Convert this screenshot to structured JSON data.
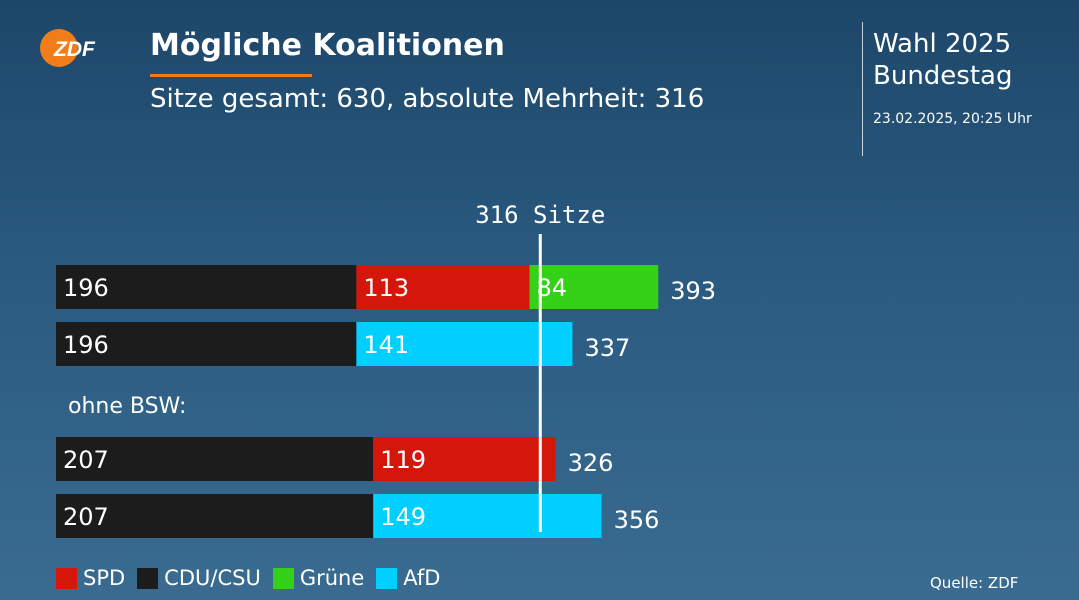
{
  "header": {
    "logo_text": "ZDF",
    "title": "Mögliche Koalitionen",
    "subtitle": "Sitze gesamt: 630, absolute Mehrheit: 316",
    "election_line1": "Wahl 2025",
    "election_line2": "Bundestag",
    "timestamp": "23.02.2025, 20:25 Uhr"
  },
  "source": "Quelle: ZDF",
  "parties": [
    {
      "key": "SPD",
      "label": "SPD",
      "color": "#d5170b"
    },
    {
      "key": "CDU",
      "label": "CDU/CSU",
      "color": "#1c1c1c"
    },
    {
      "key": "GRUENE",
      "label": "Grüne",
      "color": "#35d018"
    },
    {
      "key": "AFD",
      "label": "AfD",
      "color": "#00cfff"
    }
  ],
  "chart_data": {
    "type": "bar",
    "orientation": "horizontal-stacked",
    "title": "Mögliche Koalitionen",
    "threshold": {
      "value": 316,
      "label": "316 Sitze"
    },
    "rows": [
      {
        "segments": [
          {
            "party": "CDU",
            "value": 196
          },
          {
            "party": "SPD",
            "value": 113
          },
          {
            "party": "GRUENE",
            "value": 84
          }
        ],
        "total": 393
      },
      {
        "segments": [
          {
            "party": "CDU",
            "value": 196
          },
          {
            "party": "AFD",
            "value": 141
          }
        ],
        "total": 337
      },
      {
        "group_label": "ohne BSW:"
      },
      {
        "segments": [
          {
            "party": "CDU",
            "value": 207
          },
          {
            "party": "SPD",
            "value": 119
          }
        ],
        "total": 326
      },
      {
        "segments": [
          {
            "party": "CDU",
            "value": 207
          },
          {
            "party": "AFD",
            "value": 149
          }
        ],
        "total": 356
      }
    ]
  }
}
